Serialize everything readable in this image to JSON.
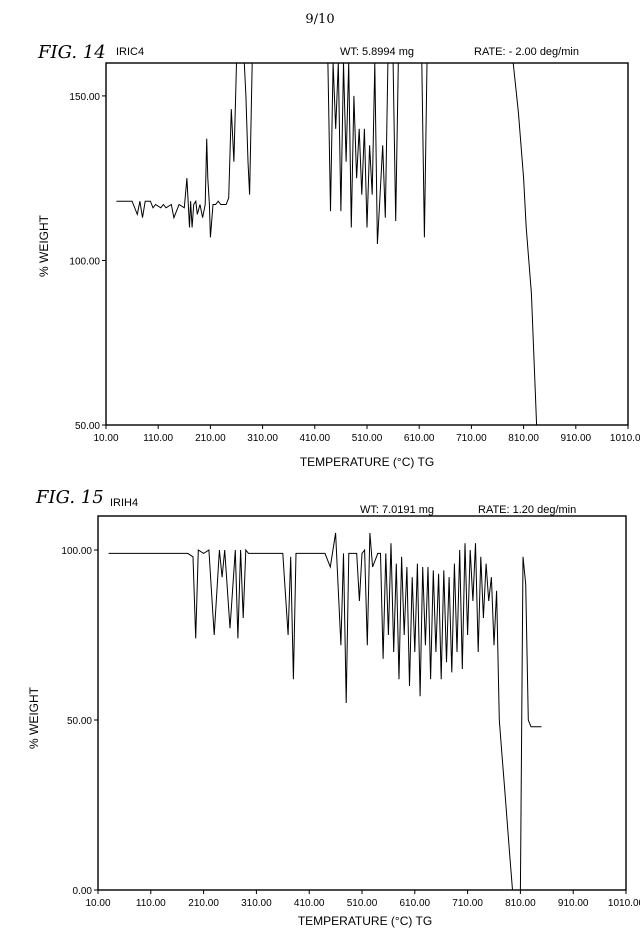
{
  "page_number": "9/10",
  "chart_data": [
    {
      "type": "line",
      "figure_label": "FIG. 14",
      "sample_id": "IRIC4",
      "weight_text": "WT: 5.8994 mg",
      "rate_text": "RATE: - 2.00 deg/min",
      "xlabel": "TEMPERATURE (°C)  TG",
      "ylabel": "% WEIGHT",
      "xlim": [
        10,
        1010
      ],
      "ylim": [
        50,
        160
      ],
      "xticks": [
        10,
        110,
        210,
        310,
        410,
        510,
        610,
        710,
        810,
        910,
        1010
      ],
      "xtick_labels": [
        "10.00",
        "110.00",
        "210.00",
        "310.00",
        "410.00",
        "510.00",
        "610.00",
        "710.00",
        "810.00",
        "910.00",
        "1010.00"
      ],
      "yticks": [
        50,
        100,
        150
      ],
      "ytick_labels": [
        "50.00",
        "100.00",
        "150.00"
      ],
      "grid": false,
      "series": [
        {
          "x": [
            30,
            60,
            70,
            75,
            80,
            85,
            95,
            100,
            105,
            115,
            120,
            125,
            135,
            140,
            150,
            160,
            165,
            170,
            172,
            175,
            178,
            182,
            185,
            190,
            195,
            200,
            203,
            205,
            208,
            210,
            215,
            220,
            225,
            230,
            240,
            245,
            250,
            255,
            260,
            265,
            272,
            275,
            278,
            282,
            285,
            290,
            300,
            305,
            310,
            315,
            325,
            335,
            350,
            370,
            385,
            400,
            420,
            435,
            440,
            445,
            450,
            455,
            460,
            465,
            470,
            475,
            480,
            485,
            490,
            495,
            500,
            505,
            510,
            515,
            520,
            525,
            530,
            535,
            540,
            545,
            550,
            555,
            560,
            565,
            570,
            575,
            580,
            585,
            590,
            595,
            600,
            605,
            610,
            615,
            620,
            625,
            635,
            645,
            655,
            665,
            670,
            675,
            680,
            685,
            695,
            720,
            740,
            760,
            775,
            790,
            800,
            810,
            815,
            820,
            825,
            830,
            835
          ],
          "y": [
            118,
            118,
            114,
            118,
            113,
            118,
            118,
            116,
            117,
            116,
            117,
            116,
            117,
            113,
            117,
            116,
            125,
            110,
            118,
            110,
            117,
            118,
            114,
            117,
            113,
            117,
            137,
            125,
            117,
            107,
            117,
            117,
            118,
            117,
            117,
            119,
            146,
            130,
            160,
            160,
            160,
            160,
            150,
            130,
            120,
            160,
            160,
            160,
            160,
            160,
            160,
            160,
            160,
            160,
            160,
            160,
            160,
            160,
            115,
            160,
            140,
            160,
            115,
            160,
            130,
            160,
            110,
            150,
            125,
            140,
            120,
            140,
            110,
            135,
            120,
            160,
            105,
            120,
            135,
            113,
            160,
            160,
            160,
            112,
            160,
            160,
            160,
            160,
            160,
            160,
            160,
            160,
            160,
            160,
            107,
            160,
            160,
            160,
            160,
            160,
            160,
            160,
            160,
            160,
            160,
            160,
            160,
            160,
            160,
            160,
            145,
            125,
            110,
            100,
            90,
            70,
            50
          ]
        }
      ]
    },
    {
      "type": "line",
      "figure_label": "FIG. 15",
      "sample_id": "IRIH4",
      "weight_text": "WT: 7.0191 mg",
      "rate_text": "RATE: 1.20 deg/min",
      "xlabel": "TEMPERATURE (°C)   TG",
      "ylabel": "% WEIGHT",
      "xlim": [
        10,
        1010
      ],
      "ylim": [
        0,
        110
      ],
      "xticks": [
        10,
        110,
        210,
        310,
        410,
        510,
        610,
        710,
        810,
        910,
        1010
      ],
      "xtick_labels": [
        "10.00",
        "110.00",
        "210.00",
        "310.00",
        "410.00",
        "510.00",
        "610.00",
        "710.00",
        "810.00",
        "910.00",
        "1010.00"
      ],
      "yticks": [
        0,
        50,
        100
      ],
      "ytick_labels": [
        "0.00",
        "50.00",
        "100.00"
      ],
      "grid": false,
      "series": [
        {
          "x": [
            30,
            60,
            90,
            120,
            150,
            180,
            190,
            195,
            200,
            210,
            220,
            230,
            240,
            245,
            250,
            260,
            270,
            275,
            280,
            285,
            290,
            295,
            300,
            310,
            320,
            330,
            340,
            350,
            360,
            370,
            375,
            380,
            385,
            390,
            400,
            420,
            430,
            440,
            450,
            460,
            470,
            475,
            480,
            485,
            490,
            495,
            500,
            505,
            510,
            515,
            520,
            525,
            530,
            540,
            545,
            550,
            555,
            560,
            565,
            570,
            575,
            580,
            585,
            590,
            595,
            600,
            605,
            610,
            615,
            620,
            625,
            630,
            635,
            640,
            645,
            650,
            655,
            660,
            665,
            670,
            675,
            680,
            685,
            690,
            695,
            700,
            705,
            710,
            715,
            720,
            725,
            730,
            735,
            740,
            745,
            750,
            755,
            760,
            765,
            770,
            775,
            780,
            785,
            790,
            795,
            800,
            805,
            810,
            815,
            820,
            825,
            830,
            835,
            840,
            845,
            850
          ],
          "y": [
            99,
            99,
            99,
            99,
            99,
            99,
            98,
            74,
            100,
            99,
            100,
            75,
            100,
            92,
            100,
            77,
            100,
            74,
            100,
            80,
            100,
            99,
            99,
            99,
            99,
            99,
            99,
            99,
            99,
            75,
            98,
            62,
            99,
            99,
            99,
            99,
            99,
            99,
            95,
            105,
            72,
            99,
            55,
            99,
            99,
            99,
            99,
            85,
            99,
            100,
            72,
            105,
            95,
            99,
            99,
            68,
            99,
            75,
            102,
            70,
            96,
            62,
            98,
            75,
            95,
            60,
            92,
            70,
            96,
            57,
            95,
            72,
            95,
            62,
            94,
            70,
            93,
            62,
            94,
            67,
            92,
            64,
            96,
            70,
            100,
            65,
            102,
            75,
            100,
            85,
            102,
            70,
            98,
            80,
            96,
            85,
            92,
            72,
            88,
            50,
            40,
            30,
            20,
            10,
            0,
            0,
            0,
            0,
            98,
            90,
            50,
            48,
            48,
            48,
            48,
            48
          ]
        }
      ]
    }
  ]
}
